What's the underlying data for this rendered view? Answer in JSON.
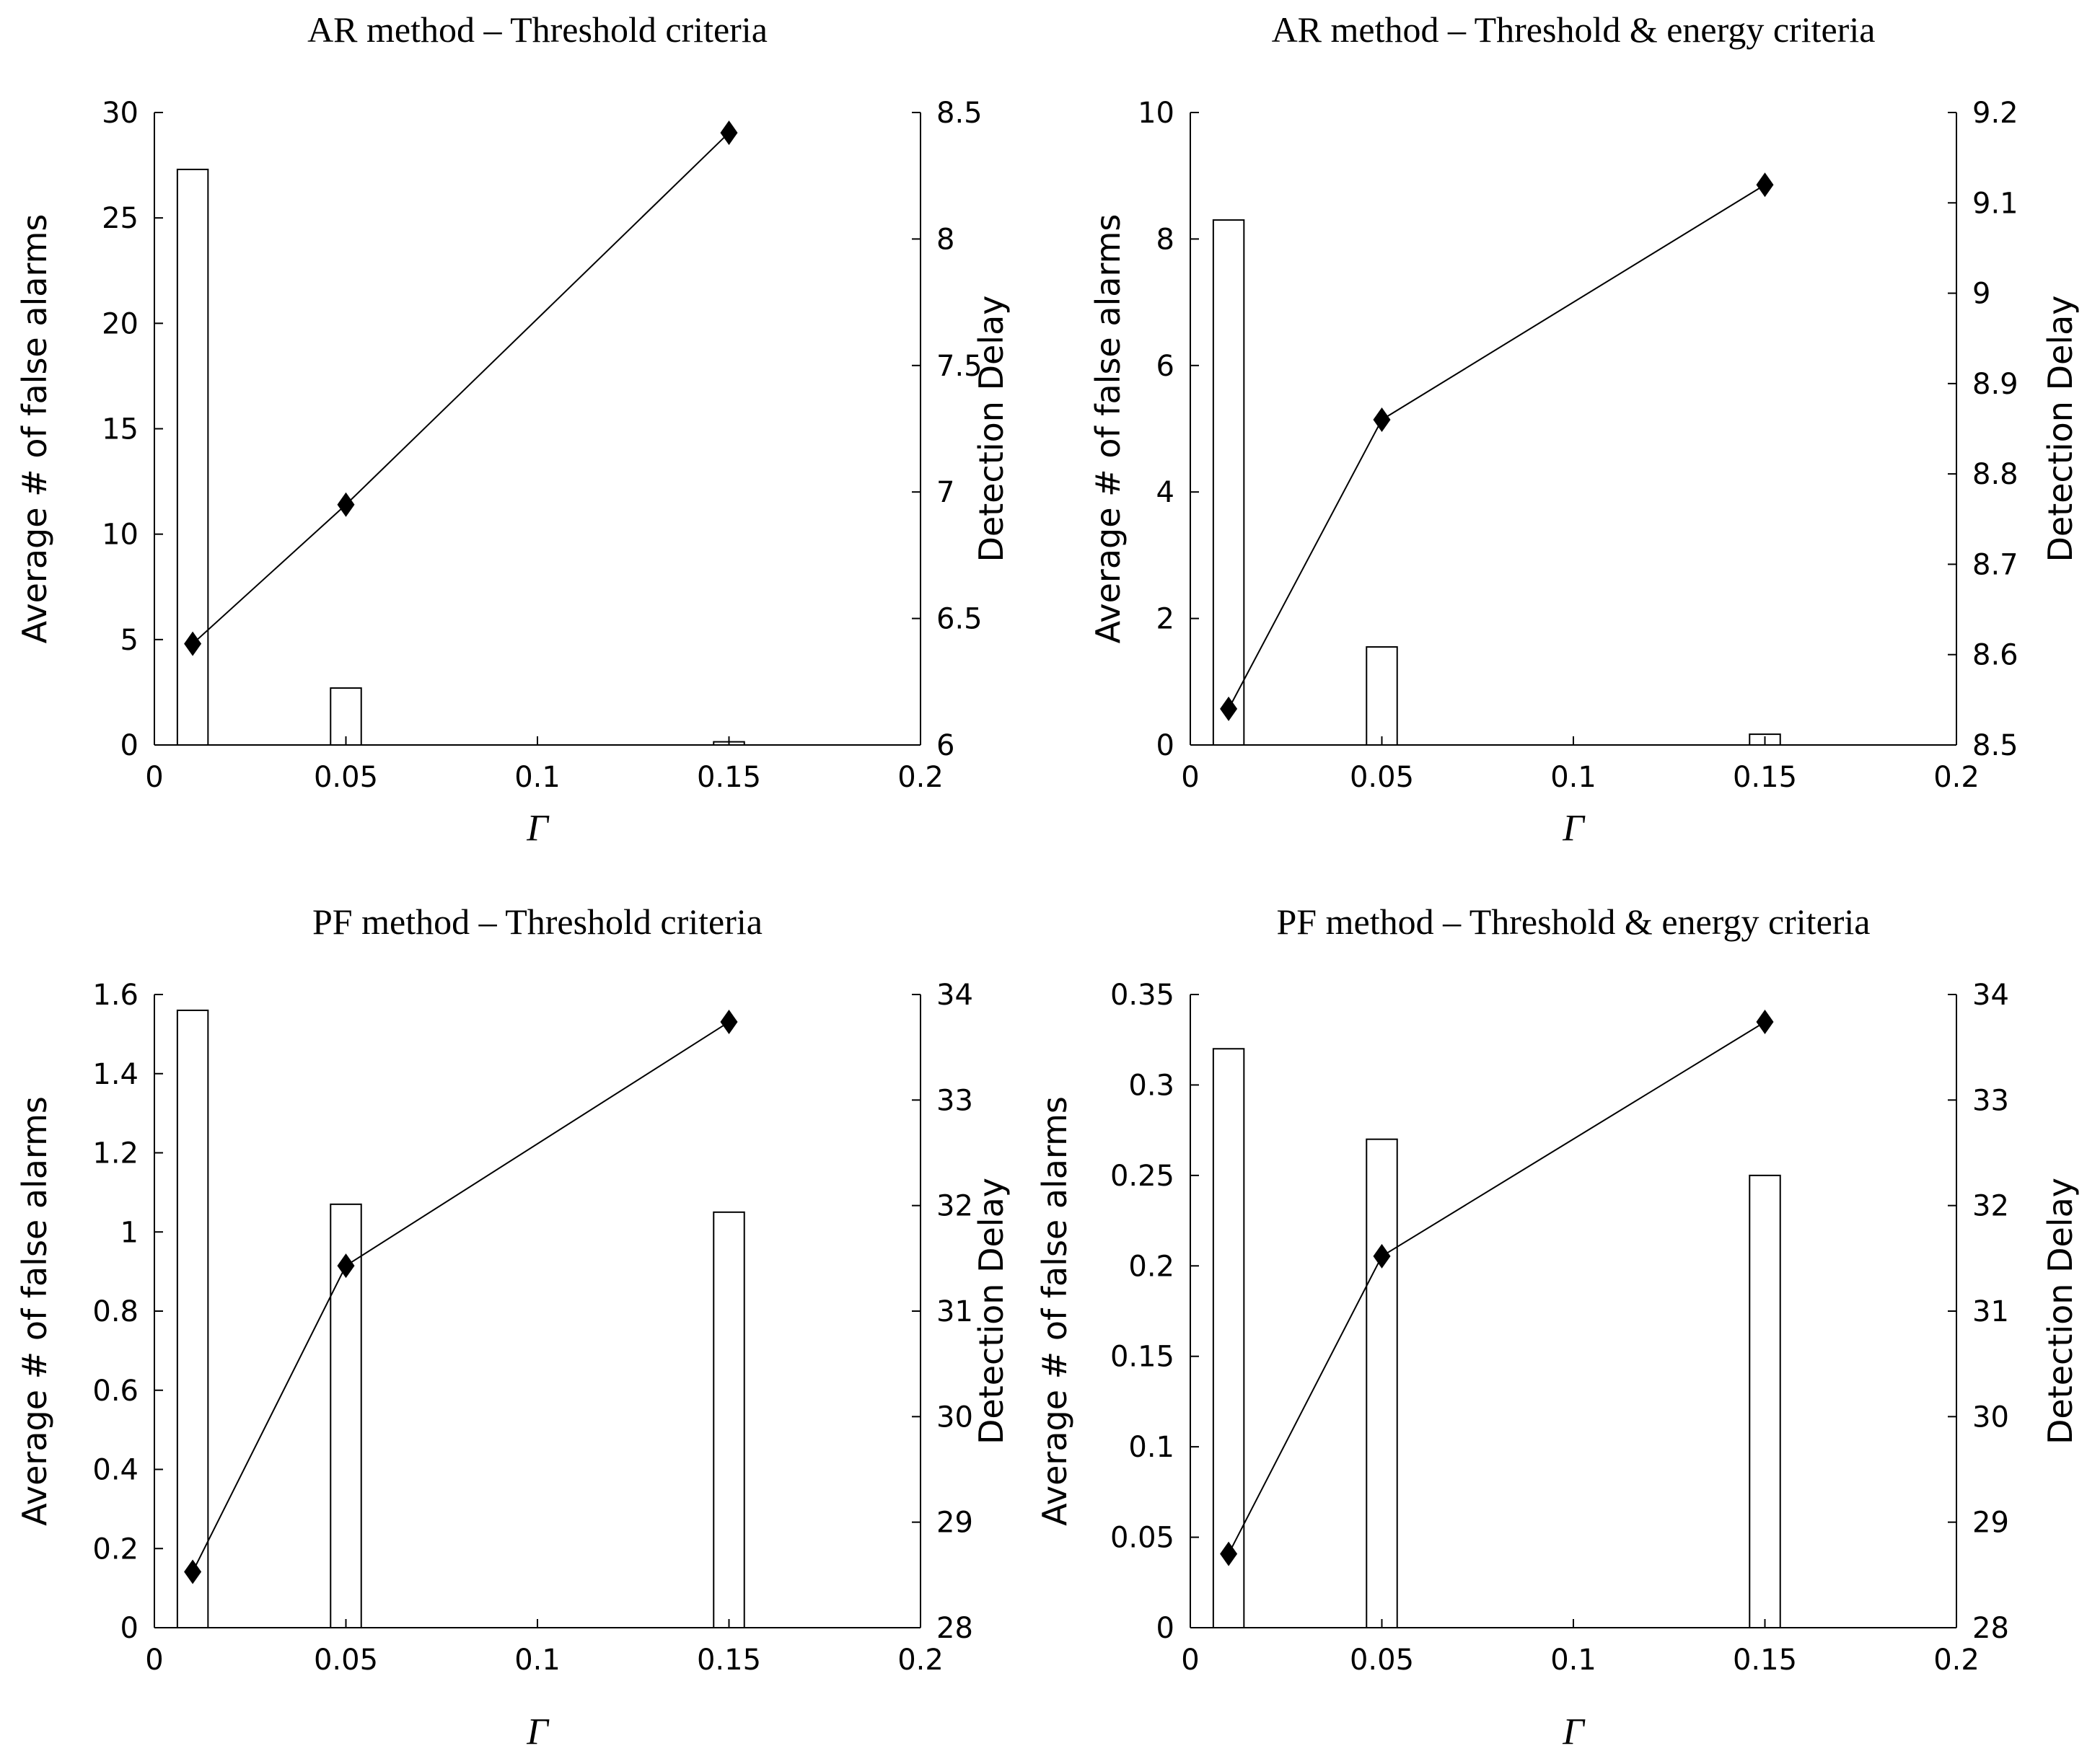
{
  "chart_data": [
    {
      "type": "bar+line",
      "title": "AR method – Threshold criteria",
      "xlabel": "Γ",
      "ylabel_left": "Average # of false alarms",
      "ylabel_right": "Detection Delay",
      "xlim": [
        0,
        0.2
      ],
      "xticks": [
        0,
        0.05,
        0.1,
        0.15,
        0.2
      ],
      "xtick_labels": [
        "0",
        "0.05",
        "0.1",
        "0.15",
        "0.2"
      ],
      "ylim_left": [
        0,
        30
      ],
      "yticks_left": [
        "0",
        "5",
        "10",
        "15",
        "20",
        "25",
        "30"
      ],
      "ylim_right": [
        6,
        8.5
      ],
      "yticks_right": [
        "6",
        "6.5",
        "7",
        "7.5",
        "8",
        "8.5"
      ],
      "bar_width": 0.008,
      "series": [
        {
          "name": "Average # of false alarms",
          "kind": "bar",
          "axis": "left",
          "x": [
            0.01,
            0.05,
            0.15
          ],
          "values": [
            27.3,
            2.7,
            0.15
          ]
        },
        {
          "name": "Detection Delay",
          "kind": "line",
          "axis": "right",
          "x": [
            0.01,
            0.05,
            0.15
          ],
          "values": [
            6.4,
            6.95,
            8.42
          ]
        }
      ]
    },
    {
      "type": "bar+line",
      "title": "AR method – Threshold & energy criteria",
      "xlabel": "Γ",
      "ylabel_left": "Average # of false alarms",
      "ylabel_right": "Detection Delay",
      "xlim": [
        0,
        0.2
      ],
      "xticks": [
        0,
        0.05,
        0.1,
        0.15,
        0.2
      ],
      "xtick_labels": [
        "0",
        "0.05",
        "0.1",
        "0.15",
        "0.2"
      ],
      "ylim_left": [
        0,
        10
      ],
      "yticks_left": [
        "0",
        "2",
        "4",
        "6",
        "8",
        "10"
      ],
      "ylim_right": [
        8.5,
        9.2
      ],
      "yticks_right": [
        "8.5",
        "8.6",
        "8.7",
        "8.8",
        "8.9",
        "9",
        "9.1",
        "9.2"
      ],
      "bar_width": 0.008,
      "series": [
        {
          "name": "Average # of false alarms",
          "kind": "bar",
          "axis": "left",
          "x": [
            0.01,
            0.05,
            0.15
          ],
          "values": [
            8.3,
            1.55,
            0.17
          ]
        },
        {
          "name": "Detection Delay",
          "kind": "line",
          "axis": "right",
          "x": [
            0.01,
            0.05,
            0.15
          ],
          "values": [
            8.54,
            8.86,
            9.12
          ]
        }
      ]
    },
    {
      "type": "bar+line",
      "title": "PF method – Threshold criteria",
      "xlabel": "Γ",
      "ylabel_left": "Average # of false alarms",
      "ylabel_right": "Detection Delay",
      "xlim": [
        0,
        0.2
      ],
      "xticks": [
        0,
        0.05,
        0.1,
        0.15,
        0.2
      ],
      "xtick_labels": [
        "0",
        "0.05",
        "0.1",
        "0.15",
        "0.2"
      ],
      "ylim_left": [
        0,
        1.6
      ],
      "yticks_left": [
        "0",
        "0.2",
        "0.4",
        "0.6",
        "0.8",
        "1",
        "1.2",
        "1.4",
        "1.6"
      ],
      "ylim_right": [
        28,
        34
      ],
      "yticks_right": [
        "28",
        "29",
        "30",
        "31",
        "32",
        "33",
        "34"
      ],
      "bar_width": 0.008,
      "series": [
        {
          "name": "Average # of false alarms",
          "kind": "bar",
          "axis": "left",
          "x": [
            0.01,
            0.05,
            0.15
          ],
          "values": [
            1.56,
            1.07,
            1.05
          ]
        },
        {
          "name": "Detection Delay",
          "kind": "line",
          "axis": "right",
          "x": [
            0.01,
            0.05,
            0.15
          ],
          "values": [
            28.53,
            31.43,
            33.74
          ]
        }
      ]
    },
    {
      "type": "bar+line",
      "title": "PF method – Threshold & energy criteria",
      "xlabel": "Γ",
      "ylabel_left": "Average # of false alarms",
      "ylabel_right": "Detection Delay",
      "xlim": [
        0,
        0.2
      ],
      "xticks": [
        0,
        0.05,
        0.1,
        0.15,
        0.2
      ],
      "xtick_labels": [
        "0",
        "0.05",
        "0.1",
        "0.15",
        "0.2"
      ],
      "ylim_left": [
        0,
        0.35
      ],
      "yticks_left": [
        "0",
        "0.05",
        "0.1",
        "0.15",
        "0.2",
        "0.25",
        "0.3",
        "0.35"
      ],
      "ylim_right": [
        28,
        34
      ],
      "yticks_right": [
        "28",
        "29",
        "30",
        "31",
        "32",
        "33",
        "34"
      ],
      "bar_width": 0.008,
      "series": [
        {
          "name": "Average # of false alarms",
          "kind": "bar",
          "axis": "left",
          "x": [
            0.01,
            0.05,
            0.15
          ],
          "values": [
            0.32,
            0.27,
            0.25
          ]
        },
        {
          "name": "Detection Delay",
          "kind": "line",
          "axis": "right",
          "x": [
            0.01,
            0.05,
            0.15
          ],
          "values": [
            28.7,
            31.52,
            33.74
          ]
        }
      ]
    }
  ]
}
